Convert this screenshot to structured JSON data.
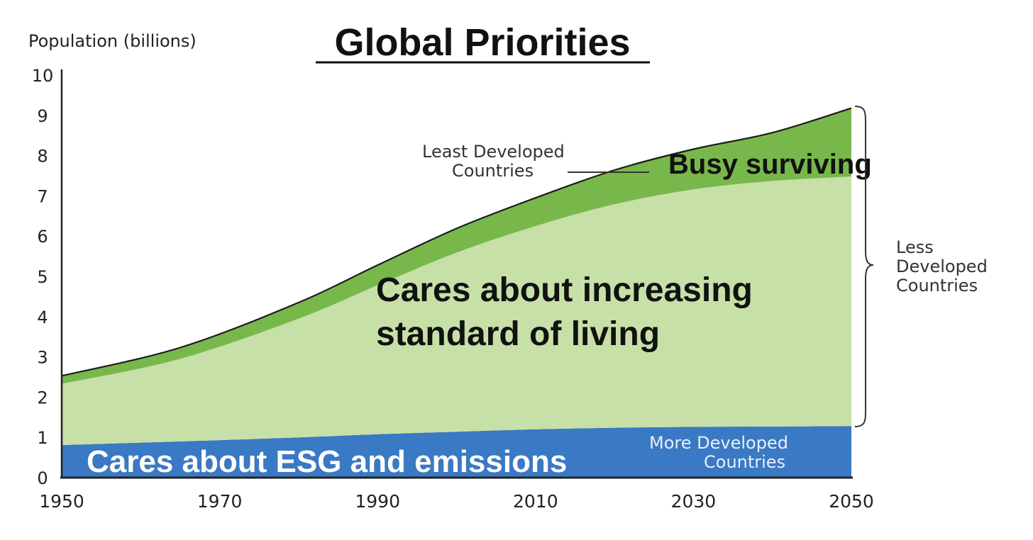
{
  "chart_data": {
    "type": "area",
    "title": "Global Priorities",
    "ylabel": "Population (billions)",
    "xlabel": "",
    "ylim": [
      0,
      10
    ],
    "xlim": [
      1950,
      2050
    ],
    "yticks": [
      "0",
      "1",
      "2",
      "3",
      "4",
      "5",
      "6",
      "7",
      "8",
      "9",
      "10"
    ],
    "xticks": [
      "1950",
      "1970",
      "1990",
      "2010",
      "2030",
      "2050"
    ],
    "x": [
      1950,
      1965,
      1980,
      1990,
      2000,
      2010,
      2020,
      2030,
      2040,
      2050
    ],
    "series": [
      {
        "name": "More Developed Countries",
        "color": "#3a79c3",
        "values": [
          0.81,
          0.9,
          1.0,
          1.08,
          1.14,
          1.2,
          1.24,
          1.26,
          1.27,
          1.28
        ]
      },
      {
        "name": "Less Developed Countries",
        "color": "#c6e0a8",
        "values": [
          1.52,
          2.05,
          2.95,
          3.7,
          4.45,
          5.05,
          5.55,
          5.9,
          6.1,
          6.2
        ]
      },
      {
        "name": "Least Developed Countries",
        "color": "#78b84b",
        "values": [
          0.2,
          0.28,
          0.4,
          0.5,
          0.6,
          0.7,
          0.85,
          1.0,
          1.2,
          1.7
        ]
      }
    ],
    "grid": false,
    "annotations": {
      "least_developed": [
        "Least Developed",
        "Countries"
      ],
      "less_developed": [
        "Less",
        "Developed",
        "Countries"
      ],
      "more_developed": [
        "More Developed",
        "Countries"
      ],
      "busy": "Busy surviving",
      "cares_living": [
        "Cares about increasing",
        "standard of living"
      ],
      "cares_esg": "Cares about ESG and emissions"
    }
  }
}
